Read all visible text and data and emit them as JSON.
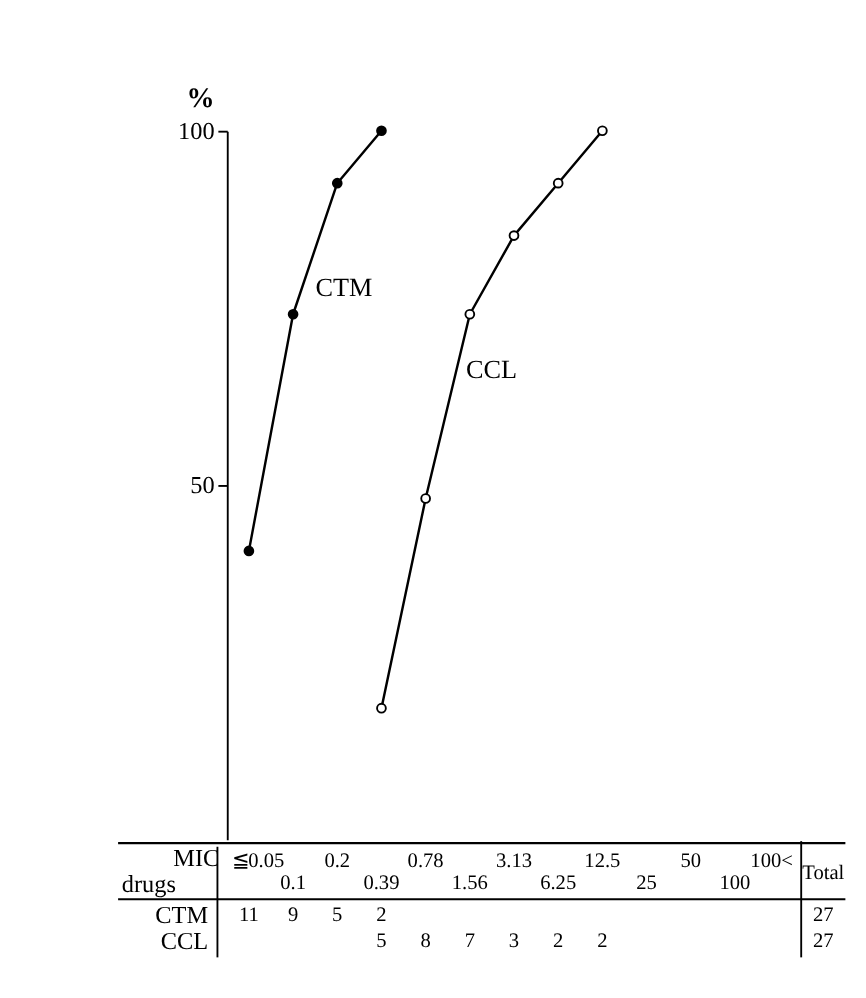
{
  "chart_data": {
    "type": "line",
    "ylabel": "%",
    "xlabel": "MIC",
    "categories": [
      "≦0.05",
      "0.1",
      "0.2",
      "0.39",
      "0.78",
      "1.56",
      "3.13",
      "6.25",
      "12.5",
      "25",
      "50",
      "100",
      "100<"
    ],
    "series": [
      {
        "name": "CTM",
        "color": "#000000",
        "values": [
          40.7,
          74.1,
          92.6,
          100,
          null,
          null,
          null,
          null,
          null,
          null,
          null,
          null,
          null
        ]
      },
      {
        "name": "CCL",
        "color": "#000000",
        "values": [
          null,
          null,
          null,
          18.5,
          48.1,
          74.1,
          85.2,
          92.6,
          100,
          null,
          null,
          null,
          null
        ]
      }
    ],
    "totals": [
      "27",
      "27"
    ],
    "annotations": [
      "drugs",
      "Total",
      "11",
      "9",
      "5",
      "2",
      "5",
      "8",
      "7",
      "3",
      "2",
      "2"
    ],
    "ylim": [
      0,
      100
    ],
    "yticks": [
      50,
      100
    ],
    "marker": "circle",
    "line_style": "solid"
  }
}
